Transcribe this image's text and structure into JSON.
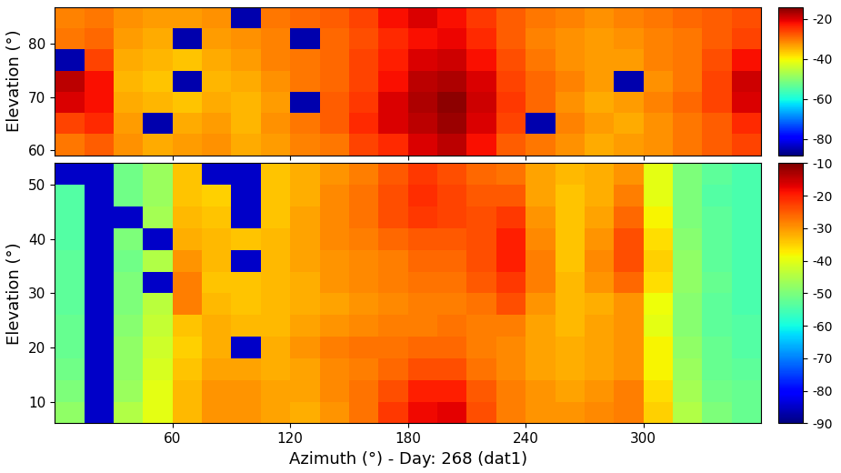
{
  "chart_data": [
    {
      "type": "heatmap",
      "y_label": "Elevation (°)",
      "x": [
        7.5,
        22.5,
        37.5,
        52.5,
        67.5,
        82.5,
        97.5,
        112.5,
        127.5,
        142.5,
        157.5,
        172.5,
        187.5,
        202.5,
        217.5,
        232.5,
        247.5,
        262.5,
        277.5,
        292.5,
        307.5,
        322.5,
        337.5,
        352.5
      ],
      "y": [
        61,
        65,
        69,
        73,
        77,
        81,
        85
      ],
      "cells": [
        [
          -30,
          -28,
          -32,
          -34,
          -33,
          -32,
          -34,
          -33,
          -31,
          -30,
          -26,
          -24,
          -20,
          -18,
          -22,
          -28,
          -30,
          -32,
          -34,
          -33,
          -32,
          -30,
          -28,
          -26
        ],
        [
          -26,
          -24,
          -33,
          -85,
          -34,
          -33,
          -35,
          -32,
          -30,
          -28,
          -24,
          -20,
          -18,
          -16,
          -20,
          -26,
          -85,
          -31,
          -33,
          -34,
          -32,
          -30,
          -28,
          -24
        ],
        [
          -20,
          -22,
          -34,
          -35,
          -36,
          -34,
          -35,
          -33,
          -85,
          -28,
          -25,
          -20,
          -17,
          -15,
          -19,
          -25,
          -29,
          -32,
          -34,
          -33,
          -31,
          -29,
          -26,
          -20
        ],
        [
          -18,
          -22,
          -35,
          -36,
          -85,
          -35,
          -34,
          -32,
          -30,
          -29,
          -26,
          -22,
          -18,
          -17,
          -20,
          -26,
          -29,
          -31,
          -33,
          -85,
          -32,
          -30,
          -26,
          -19
        ],
        [
          -85,
          -26,
          -34,
          -35,
          -36,
          -34,
          -33,
          -31,
          -30,
          -29,
          -26,
          -23,
          -20,
          -19,
          -22,
          -27,
          -30,
          -32,
          -33,
          -33,
          -31,
          -30,
          -27,
          -22
        ],
        [
          -30,
          -29,
          -33,
          -34,
          -85,
          -33,
          -32,
          -31,
          -85,
          -29,
          -27,
          -24,
          -22,
          -21,
          -24,
          -28,
          -31,
          -32,
          -33,
          -32,
          -31,
          -30,
          -28,
          -26
        ],
        [
          -31,
          -30,
          -32,
          -33,
          -33,
          -32,
          -85,
          -30,
          -29,
          -28,
          -26,
          -22,
          -20,
          -22,
          -25,
          -28,
          -30,
          -31,
          -32,
          -31,
          -30,
          -29,
          -28,
          -27
        ]
      ],
      "xlim": [
        0,
        360
      ],
      "ylim": [
        59,
        87
      ],
      "xticks": [
        60,
        120,
        180,
        240,
        300
      ],
      "yticks": [
        60,
        70,
        80
      ],
      "tick_labels": "y",
      "colorbar_range": [
        -88,
        -14
      ],
      "colorbar_ticks": [
        -80,
        -60,
        -40,
        -20
      ]
    },
    {
      "type": "heatmap",
      "x_label": "Azimuth (°) - Day: 268 (dat1)",
      "y_label": "Elevation (°)",
      "x": [
        7.5,
        22.5,
        37.5,
        52.5,
        67.5,
        82.5,
        97.5,
        112.5,
        127.5,
        142.5,
        157.5,
        172.5,
        187.5,
        202.5,
        217.5,
        232.5,
        247.5,
        262.5,
        277.5,
        292.5,
        307.5,
        322.5,
        337.5,
        352.5
      ],
      "y": [
        8,
        12,
        16,
        20,
        24,
        28,
        32,
        36,
        40,
        44,
        48,
        52
      ],
      "cells": [
        [
          -48,
          -85,
          -45,
          -40,
          -33,
          -30,
          -30,
          -31,
          -32,
          -30,
          -27,
          -22,
          -18,
          -17,
          -24,
          -28,
          -30,
          -30,
          -29,
          -28,
          -35,
          -45,
          -50,
          -52
        ],
        [
          -50,
          -85,
          -47,
          -40,
          -33,
          -30,
          -30,
          -31,
          -31,
          -29,
          -27,
          -24,
          -20,
          -20,
          -25,
          -28,
          -30,
          -31,
          -30,
          -28,
          -36,
          -46,
          -51,
          -52
        ],
        [
          -51,
          -85,
          -48,
          -41,
          -34,
          -31,
          -31,
          -32,
          -31,
          -29,
          -28,
          -26,
          -24,
          -24,
          -27,
          -29,
          -31,
          -32,
          -31,
          -30,
          -38,
          -47,
          -52,
          -53
        ],
        [
          -52,
          -85,
          -48,
          -42,
          -35,
          -32,
          -85,
          -32,
          -30,
          -28,
          -27,
          -27,
          -26,
          -26,
          -28,
          -29,
          -31,
          -32,
          -31,
          -30,
          -38,
          -48,
          -52,
          -54
        ],
        [
          -52,
          -85,
          -49,
          -43,
          -34,
          -32,
          -33,
          -33,
          -31,
          -30,
          -29,
          -28,
          -28,
          -27,
          -28,
          -28,
          -31,
          -33,
          -31,
          -30,
          -40,
          -49,
          -53,
          -54
        ],
        [
          -53,
          -85,
          -50,
          -44,
          -28,
          -33,
          -34,
          -33,
          -32,
          -31,
          -30,
          -29,
          -28,
          -28,
          -27,
          -24,
          -30,
          -33,
          -32,
          -30,
          -39,
          -49,
          -53,
          -55
        ],
        [
          -53,
          -85,
          -50,
          -85,
          -28,
          -34,
          -34,
          -33,
          -32,
          -30,
          -29,
          -28,
          -27,
          -27,
          -25,
          -22,
          -28,
          -33,
          -30,
          -26,
          -36,
          -48,
          -52,
          -55
        ],
        [
          -53,
          -85,
          -51,
          -45,
          -30,
          -33,
          -85,
          -33,
          -31,
          -30,
          -29,
          -28,
          -26,
          -26,
          -24,
          -20,
          -28,
          -34,
          -29,
          -24,
          -35,
          -48,
          -53,
          -55
        ],
        [
          -54,
          -85,
          -50,
          -85,
          -32,
          -33,
          -34,
          -33,
          -31,
          -29,
          -28,
          -26,
          -25,
          -25,
          -24,
          -20,
          -29,
          -34,
          -30,
          -24,
          -36,
          -49,
          -53,
          -55
        ],
        [
          -54,
          -85,
          -85,
          -46,
          -33,
          -34,
          -85,
          -34,
          -31,
          -29,
          -27,
          -24,
          -22,
          -23,
          -24,
          -22,
          -30,
          -34,
          -31,
          -26,
          -38,
          -50,
          -53,
          -55
        ],
        [
          -54,
          -85,
          -51,
          -47,
          -34,
          -35,
          -85,
          -34,
          -32,
          -29,
          -27,
          -24,
          -21,
          -23,
          -25,
          -25,
          -31,
          -34,
          -32,
          -28,
          -40,
          -50,
          -54,
          -55
        ],
        [
          -85,
          -85,
          -51,
          -47,
          -34,
          -85,
          -85,
          -34,
          -32,
          -30,
          -28,
          -25,
          -22,
          -24,
          -26,
          -27,
          -31,
          -33,
          -32,
          -30,
          -40,
          -50,
          -53,
          -55
        ]
      ],
      "xlim": [
        0,
        360
      ],
      "ylim": [
        6,
        54
      ],
      "xticks": [
        60,
        120,
        180,
        240,
        300
      ],
      "yticks": [
        10,
        20,
        30,
        40,
        50
      ],
      "colorbar_range": [
        -90,
        -10
      ],
      "colorbar_ticks": [
        -90,
        -80,
        -70,
        -60,
        -50,
        -40,
        -30,
        -20,
        -10
      ]
    }
  ]
}
